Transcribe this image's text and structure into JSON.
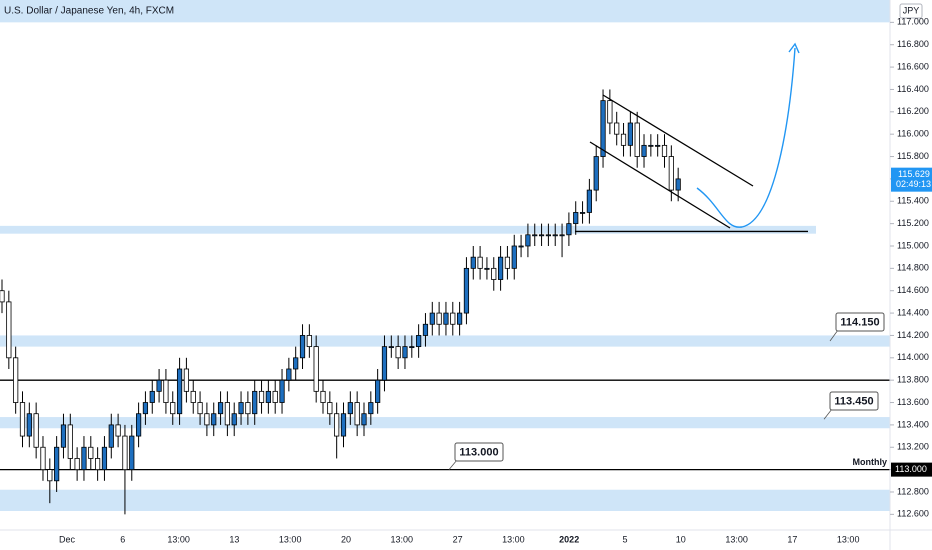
{
  "chart_data": {
    "type": "candlestick",
    "title": "U.S. Dollar / Japanese Yen, 4h, FXCM",
    "currency": "JPY",
    "up_color": "#1e6fbf",
    "down_color": "#ffffff",
    "zone_color": "#cfe5f8",
    "open": [
      114.6,
      114.5,
      114.0,
      113.6,
      113.3,
      113.5,
      113.2,
      113.0,
      112.9,
      113.2,
      113.4,
      113.1,
      113.0,
      113.2,
      113.1,
      113.0,
      113.2,
      113.4,
      113.3,
      113.0,
      113.3,
      113.5,
      113.6,
      113.7,
      113.8,
      113.6,
      113.5,
      113.9,
      113.7,
      113.6,
      113.5,
      113.4,
      113.5,
      113.6,
      113.4,
      113.5,
      113.6,
      113.5,
      113.7,
      113.6,
      113.7,
      113.6,
      113.8,
      113.9,
      114.0,
      114.2,
      114.1,
      113.7,
      113.6,
      113.5,
      113.3,
      113.5,
      113.6,
      113.4,
      113.5,
      113.6,
      113.8,
      114.1,
      114.1,
      114.0,
      114.1,
      114.1,
      114.2,
      114.3,
      114.4,
      114.3,
      114.4,
      114.3,
      114.4,
      114.8,
      114.9,
      114.8,
      114.8,
      114.7,
      114.9,
      114.8,
      115.0,
      115.0,
      115.1,
      115.1,
      115.1,
      115.1,
      115.1,
      115.1,
      115.2,
      115.3,
      115.3,
      115.5,
      115.8,
      116.3,
      116.1,
      116.0,
      115.9,
      116.1,
      115.8,
      115.9,
      115.9,
      115.9,
      115.8,
      115.5
    ],
    "high": [
      114.7,
      114.6,
      114.1,
      113.7,
      113.6,
      113.6,
      113.3,
      113.1,
      113.3,
      113.5,
      113.5,
      113.2,
      113.3,
      113.3,
      113.2,
      113.3,
      113.5,
      113.5,
      113.4,
      113.4,
      113.6,
      113.7,
      113.8,
      113.9,
      113.9,
      113.7,
      114.0,
      114.0,
      113.8,
      113.7,
      113.6,
      113.6,
      113.7,
      113.7,
      113.6,
      113.7,
      113.7,
      113.8,
      113.8,
      113.8,
      113.8,
      113.9,
      114.0,
      114.1,
      114.3,
      114.3,
      114.2,
      113.8,
      113.7,
      113.6,
      113.6,
      113.7,
      113.7,
      113.6,
      113.7,
      113.9,
      114.2,
      114.2,
      114.2,
      114.2,
      114.2,
      114.3,
      114.4,
      114.5,
      114.5,
      114.5,
      114.5,
      114.5,
      114.9,
      115.0,
      115.0,
      114.9,
      114.9,
      115.0,
      115.0,
      115.1,
      115.1,
      115.2,
      115.2,
      115.2,
      115.2,
      115.2,
      115.2,
      115.3,
      115.4,
      115.4,
      115.6,
      115.9,
      116.4,
      116.4,
      116.2,
      116.1,
      116.2,
      116.2,
      116.0,
      116.0,
      116.0,
      116.0,
      115.9,
      115.7
    ],
    "low": [
      114.4,
      113.9,
      113.5,
      113.2,
      113.2,
      113.1,
      112.9,
      112.7,
      112.8,
      113.1,
      113.0,
      112.9,
      112.9,
      113.0,
      112.9,
      112.9,
      113.1,
      113.2,
      112.6,
      112.9,
      113.2,
      113.4,
      113.5,
      113.6,
      113.5,
      113.4,
      113.4,
      113.6,
      113.5,
      113.4,
      113.3,
      113.3,
      113.4,
      113.3,
      113.3,
      113.4,
      113.4,
      113.4,
      113.5,
      113.5,
      113.5,
      113.5,
      113.7,
      113.8,
      113.9,
      114.0,
      113.6,
      113.5,
      113.4,
      113.1,
      113.2,
      113.4,
      113.3,
      113.3,
      113.4,
      113.5,
      113.7,
      114.0,
      113.9,
      113.9,
      114.0,
      114.0,
      114.1,
      114.2,
      114.2,
      114.2,
      114.2,
      114.2,
      114.3,
      114.7,
      114.7,
      114.7,
      114.6,
      114.6,
      114.7,
      114.7,
      114.9,
      114.9,
      115.0,
      115.0,
      115.0,
      115.0,
      114.9,
      115.0,
      115.1,
      115.2,
      115.2,
      115.4,
      115.7,
      116.0,
      115.9,
      115.8,
      115.8,
      115.7,
      115.7,
      115.8,
      115.8,
      115.7,
      115.4,
      115.4
    ],
    "close": [
      114.5,
      114.0,
      113.6,
      113.3,
      113.5,
      113.2,
      113.0,
      112.9,
      113.2,
      113.4,
      113.1,
      113.0,
      113.2,
      113.1,
      113.0,
      113.2,
      113.4,
      113.3,
      113.0,
      113.3,
      113.5,
      113.6,
      113.7,
      113.8,
      113.6,
      113.5,
      113.9,
      113.7,
      113.6,
      113.5,
      113.4,
      113.5,
      113.6,
      113.4,
      113.5,
      113.6,
      113.5,
      113.7,
      113.6,
      113.7,
      113.6,
      113.8,
      113.9,
      114.0,
      114.2,
      114.1,
      113.7,
      113.6,
      113.5,
      113.3,
      113.5,
      113.6,
      113.4,
      113.5,
      113.6,
      113.8,
      114.1,
      114.1,
      114.0,
      114.1,
      114.1,
      114.2,
      114.3,
      114.4,
      114.3,
      114.4,
      114.3,
      114.4,
      114.8,
      114.9,
      114.8,
      114.8,
      114.7,
      114.9,
      114.8,
      115.0,
      115.0,
      115.1,
      115.1,
      115.1,
      115.1,
      115.1,
      115.1,
      115.2,
      115.3,
      115.3,
      115.5,
      115.8,
      116.3,
      116.1,
      116.0,
      115.9,
      116.1,
      115.8,
      115.9,
      115.9,
      115.9,
      115.8,
      115.5,
      115.6
    ],
    "ylim": [
      112.46,
      117.2
    ],
    "yticks": [
      {
        "value": 117.0,
        "label": "117.000"
      },
      {
        "value": 116.8,
        "label": "116.800"
      },
      {
        "value": 116.6,
        "label": "116.600"
      },
      {
        "value": 116.4,
        "label": "116.400"
      },
      {
        "value": 116.2,
        "label": "116.200"
      },
      {
        "value": 116.0,
        "label": "116.000"
      },
      {
        "value": 115.8,
        "label": "115.800"
      },
      {
        "value": 115.6,
        "label": "115.600"
      },
      {
        "value": 115.4,
        "label": "115.400"
      },
      {
        "value": 115.2,
        "label": "115.200"
      },
      {
        "value": 115.0,
        "label": "115.000"
      },
      {
        "value": 114.8,
        "label": "114.800"
      },
      {
        "value": 114.6,
        "label": "114.600"
      },
      {
        "value": 114.4,
        "label": "114.400"
      },
      {
        "value": 114.2,
        "label": "114.200"
      },
      {
        "value": 114.0,
        "label": "114.000"
      },
      {
        "value": 113.8,
        "label": "113.800"
      },
      {
        "value": 113.6,
        "label": "113.600"
      },
      {
        "value": 113.4,
        "label": "113.400"
      },
      {
        "value": 113.2,
        "label": "113.200"
      },
      {
        "value": 113.0,
        "label": "113.000"
      },
      {
        "value": 112.8,
        "label": "112.800"
      },
      {
        "value": 112.6,
        "label": "112.600"
      }
    ],
    "xticks": [
      "Dec",
      "6",
      "13:00",
      "13",
      "13:00",
      "20",
      "13:00",
      "27",
      "13:00",
      "2022",
      "5",
      "10",
      "13:00",
      "17",
      "13:00"
    ],
    "zones": [
      {
        "from": 117.0,
        "to": 117.2
      },
      {
        "from": 115.11,
        "to": 115.18
      },
      {
        "from": 114.1,
        "to": 114.2
      },
      {
        "from": 113.37,
        "to": 113.47
      },
      {
        "from": 112.63,
        "to": 112.82
      }
    ],
    "lines": [
      113.8,
      113.0,
      115.13
    ],
    "callouts": [
      {
        "value": 114.15,
        "label": "114.150"
      },
      {
        "value": 113.45,
        "label": "113.450"
      },
      {
        "value": 113.0,
        "label": "113.000"
      }
    ],
    "level_note": "Monthly",
    "axis_marker": {
      "value": 113.0,
      "label": "113.000"
    },
    "last_price": 115.629,
    "countdown": "02:49:13"
  }
}
